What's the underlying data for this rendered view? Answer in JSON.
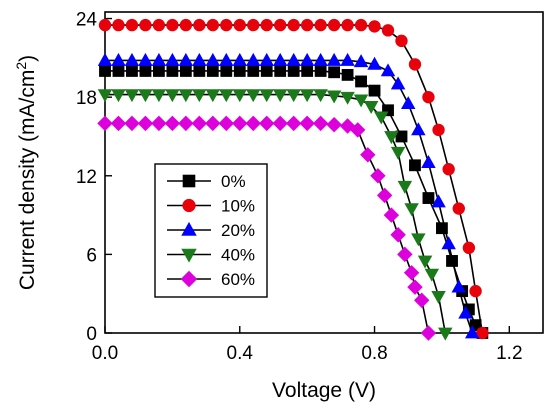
{
  "chart_data": {
    "type": "line",
    "xlabel": "Voltage (V)",
    "ylabel_main": "Current density (mA/cm",
    "ylabel_sup": "2",
    "ylabel_close": ")",
    "xlim": [
      0.0,
      1.3
    ],
    "ylim": [
      0,
      24.5
    ],
    "xticks": [
      {
        "value": 0.0,
        "label": "0.0"
      },
      {
        "value": 0.4,
        "label": "0.4"
      },
      {
        "value": 0.8,
        "label": "0.8"
      },
      {
        "value": 1.2,
        "label": "1.2"
      }
    ],
    "yticks": [
      {
        "value": 0,
        "label": "0"
      },
      {
        "value": 6,
        "label": "6"
      },
      {
        "value": 12,
        "label": "12"
      },
      {
        "value": 18,
        "label": "18"
      },
      {
        "value": 24,
        "label": "24"
      }
    ],
    "grid": false,
    "legend_position": "center-left",
    "series": [
      {
        "name": "0%",
        "color": "#000000",
        "marker": "square",
        "x": [
          0.0,
          0.04,
          0.08,
          0.12,
          0.16,
          0.2,
          0.24,
          0.28,
          0.32,
          0.36,
          0.4,
          0.44,
          0.48,
          0.52,
          0.56,
          0.6,
          0.64,
          0.68,
          0.72,
          0.76,
          0.8,
          0.84,
          0.88,
          0.92,
          0.96,
          1.0,
          1.03,
          1.06,
          1.08,
          1.1,
          1.12
        ],
        "y": [
          20.0,
          20.0,
          20.0,
          20.0,
          20.0,
          20.0,
          20.0,
          20.0,
          20.0,
          20.0,
          20.0,
          20.0,
          20.0,
          20.0,
          20.0,
          20.0,
          20.0,
          19.9,
          19.7,
          19.2,
          18.5,
          17.0,
          15.0,
          12.8,
          10.3,
          8.0,
          5.5,
          3.2,
          1.8,
          0.6,
          0.0
        ]
      },
      {
        "name": "10%",
        "color": "#e8000b",
        "marker": "circle",
        "x": [
          0.0,
          0.04,
          0.08,
          0.12,
          0.16,
          0.2,
          0.24,
          0.28,
          0.32,
          0.36,
          0.4,
          0.44,
          0.48,
          0.52,
          0.56,
          0.6,
          0.64,
          0.68,
          0.72,
          0.76,
          0.8,
          0.84,
          0.88,
          0.92,
          0.96,
          0.99,
          1.02,
          1.05,
          1.08,
          1.1,
          1.12
        ],
        "y": [
          23.5,
          23.5,
          23.5,
          23.5,
          23.5,
          23.5,
          23.5,
          23.5,
          23.5,
          23.5,
          23.5,
          23.5,
          23.5,
          23.5,
          23.5,
          23.5,
          23.5,
          23.5,
          23.5,
          23.5,
          23.4,
          23.1,
          22.3,
          20.5,
          18.0,
          15.5,
          12.5,
          9.5,
          6.5,
          3.2,
          0.0
        ]
      },
      {
        "name": "20%",
        "color": "#0000ff",
        "marker": "triangle-up",
        "x": [
          0.0,
          0.04,
          0.08,
          0.12,
          0.16,
          0.2,
          0.24,
          0.28,
          0.32,
          0.36,
          0.4,
          0.44,
          0.48,
          0.52,
          0.56,
          0.6,
          0.64,
          0.68,
          0.72,
          0.76,
          0.8,
          0.84,
          0.87,
          0.9,
          0.93,
          0.96,
          0.99,
          1.02,
          1.05,
          1.07,
          1.09
        ],
        "y": [
          20.8,
          20.8,
          20.8,
          20.8,
          20.8,
          20.8,
          20.8,
          20.8,
          20.8,
          20.8,
          20.8,
          20.8,
          20.8,
          20.8,
          20.8,
          20.8,
          20.8,
          20.8,
          20.8,
          20.7,
          20.5,
          20.0,
          19.0,
          17.5,
          15.5,
          13.0,
          10.0,
          6.8,
          3.5,
          1.5,
          0.0
        ]
      },
      {
        "name": "40%",
        "color": "#1a7a1a",
        "marker": "triangle-down",
        "x": [
          0.0,
          0.04,
          0.08,
          0.12,
          0.16,
          0.2,
          0.24,
          0.28,
          0.32,
          0.36,
          0.4,
          0.44,
          0.48,
          0.52,
          0.56,
          0.6,
          0.64,
          0.68,
          0.72,
          0.76,
          0.79,
          0.82,
          0.85,
          0.87,
          0.89,
          0.91,
          0.93,
          0.95,
          0.97,
          0.99,
          1.01
        ],
        "y": [
          18.2,
          18.2,
          18.2,
          18.2,
          18.2,
          18.2,
          18.2,
          18.2,
          18.2,
          18.2,
          18.2,
          18.2,
          18.2,
          18.2,
          18.2,
          18.2,
          18.2,
          18.1,
          18.0,
          17.8,
          17.3,
          16.5,
          15.0,
          13.8,
          11.2,
          9.5,
          7.2,
          5.5,
          4.5,
          2.8,
          0.0
        ]
      },
      {
        "name": "60%",
        "color": "#dd00dd",
        "marker": "diamond",
        "x": [
          0.0,
          0.04,
          0.08,
          0.12,
          0.16,
          0.2,
          0.24,
          0.28,
          0.32,
          0.36,
          0.4,
          0.44,
          0.48,
          0.52,
          0.56,
          0.6,
          0.64,
          0.68,
          0.72,
          0.75,
          0.78,
          0.81,
          0.83,
          0.85,
          0.87,
          0.89,
          0.91,
          0.92,
          0.94,
          0.96
        ],
        "y": [
          16.0,
          16.0,
          16.0,
          16.0,
          16.0,
          16.0,
          16.0,
          16.0,
          16.0,
          16.0,
          16.0,
          16.0,
          16.0,
          16.0,
          16.0,
          16.0,
          16.0,
          15.9,
          15.8,
          15.5,
          13.6,
          12.0,
          10.5,
          9.0,
          7.5,
          6.0,
          4.6,
          3.5,
          2.5,
          0.0
        ]
      }
    ]
  }
}
